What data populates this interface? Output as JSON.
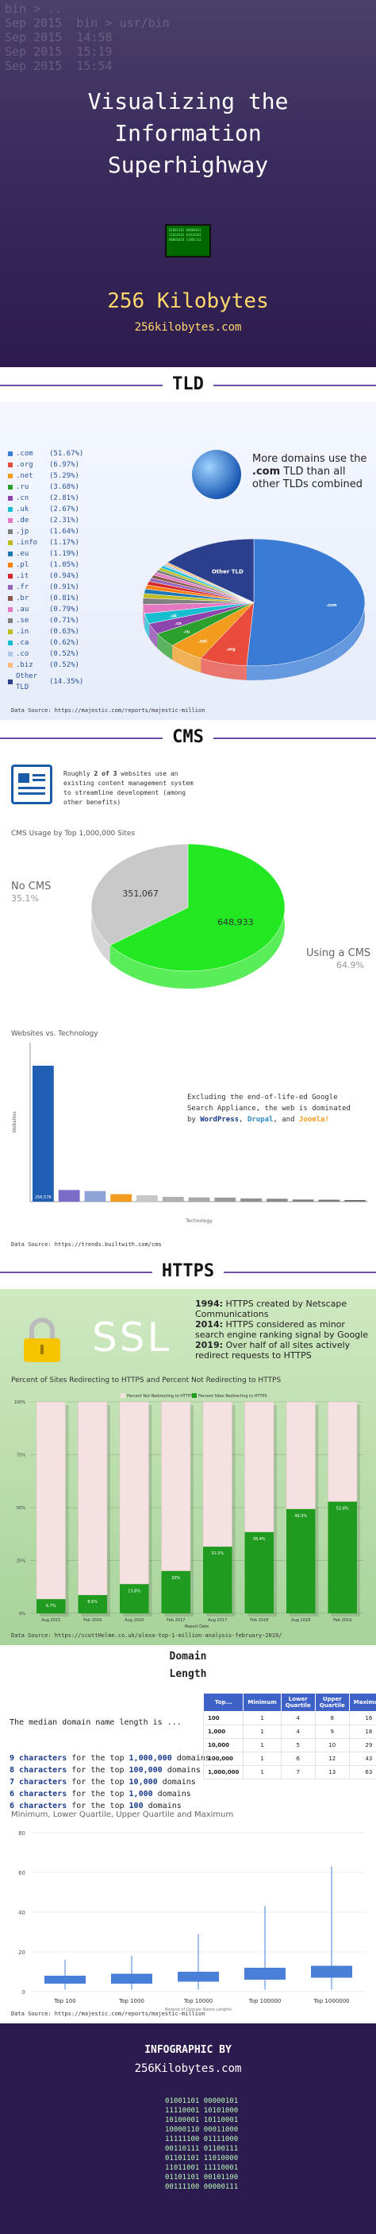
{
  "header": {
    "bg_code": "bin > ..\nSep 2015  bin > usr/bin\nSep 2015  14:58\nSep 2015  15:19\nSep 2015  15:54",
    "title_lines": [
      "Visualizing the",
      "Information",
      "Superhighway"
    ],
    "chip_bits": "01001101 00000011 11010101 01010101 00001010 11001111",
    "brand": "256 Kilobytes",
    "url": "256kilobytes.com"
  },
  "tld": {
    "section_title": "TLD",
    "note_html_parts": [
      "More domains use the ",
      ".com",
      " TLD than all other TLDs combined"
    ],
    "list": [
      {
        "name": ".com",
        "pct": "(51.67%)",
        "color": "#3a7bd5"
      },
      {
        "name": ".org",
        "pct": "(6.97%)",
        "color": "#e94b3c"
      },
      {
        "name": ".net",
        "pct": "(5.29%)",
        "color": "#f29b1d"
      },
      {
        "name": ".ru",
        "pct": "(3.68%)",
        "color": "#2ca02c"
      },
      {
        "name": ".cn",
        "pct": "(2.81%)",
        "color": "#8e44ad"
      },
      {
        "name": ".uk",
        "pct": "(2.67%)",
        "color": "#17becf"
      },
      {
        "name": ".de",
        "pct": "(2.31%)",
        "color": "#e377c2"
      },
      {
        "name": ".jp",
        "pct": "(1.64%)",
        "color": "#7f7f7f"
      },
      {
        "name": ".info",
        "pct": "(1.17%)",
        "color": "#bcbd22"
      },
      {
        "name": ".eu",
        "pct": "(1.19%)",
        "color": "#1f77b4"
      },
      {
        "name": ".pl",
        "pct": "(1.05%)",
        "color": "#ff7f0e"
      },
      {
        "name": ".it",
        "pct": "(0.94%)",
        "color": "#d62728"
      },
      {
        "name": ".fr",
        "pct": "(0.91%)",
        "color": "#9467bd"
      },
      {
        "name": ".br",
        "pct": "(0.81%)",
        "color": "#8c564b"
      },
      {
        "name": ".au",
        "pct": "(0.79%)",
        "color": "#e377c2"
      },
      {
        "name": ".se",
        "pct": "(0.71%)",
        "color": "#7f7f7f"
      },
      {
        "name": ".in",
        "pct": "(0.63%)",
        "color": "#bcbd22"
      },
      {
        "name": ".ca",
        "pct": "(0.62%)",
        "color": "#17becf"
      },
      {
        "name": ".co",
        "pct": "(0.52%)",
        "color": "#aec7e8"
      },
      {
        "name": ".biz",
        "pct": "(0.52%)",
        "color": "#ffbb78"
      },
      {
        "name": "Other TLD",
        "pct": "(14.35%)",
        "color": "#2b3f8f"
      }
    ],
    "pie_labels": {
      "com": ".com",
      "other": "Other TLD",
      "org": ".org",
      "net": ".net",
      "ru": ".ru",
      "cn": ".cn",
      "uk": ".uk"
    },
    "source": "Data Source: https://majestic.com/reports/majestic-million"
  },
  "cms": {
    "section_title": "CMS",
    "intro_parts": [
      "Roughly ",
      "2 of 3",
      " websites use an existing content management system to streamline development (among other benefits)"
    ],
    "usage_title": "CMS Usage by Top 1,000,000 Sites",
    "no_cms_label": "No CMS",
    "no_cms_pct": "35.1%",
    "using_label": "Using a CMS",
    "using_pct": "64.9%",
    "no_cms_value": "351,067",
    "using_value": "648,933",
    "tech_title": "Websites vs. Technology",
    "tech_note_parts": [
      "Excluding the end-of-life-ed Google Search Appliance, the web is dominated by ",
      "WordPress",
      ", ",
      "Drupal",
      ", and ",
      "Joomla!"
    ],
    "bar_axis_label": "Technology",
    "bar_y_label": "Websites",
    "bar_value_label": "256,576",
    "source": "Data Source: https://trends.builtwith.com/cms"
  },
  "https": {
    "section_title": "HTTPS",
    "ssl": "SSL",
    "notes": [
      {
        "year": "1994:",
        "text": " HTTPS created by Netscape Communications"
      },
      {
        "year": "2014:",
        "text": " HTTPS considered as minor search engine ranking signal by Google"
      },
      {
        "year": "2019:",
        "text": " Over half of all sites actively redirect requests to HTTPS"
      }
    ],
    "chart_title": "Percent of Sites Redirecting to HTTPS and Percent Not Redirecting to HTTPS",
    "legend": [
      "Percent Not Redirecting to HTTPS",
      "Percent Sites Redirecting to HTTPS"
    ],
    "x_title": "Report Date",
    "source": "Data Source: https://scottHelme.co.uk/alexa-top-1-million-analysis-february-2019/"
  },
  "domain": {
    "title_line1": "Domain",
    "title_line2": "Length",
    "intro": "The median domain name length is ...",
    "rows": [
      {
        "chars": "9 characters",
        "mid": " for the top ",
        "count": "1,000,000",
        "tail": " domains"
      },
      {
        "chars": "8 characters",
        "mid": " for the top ",
        "count": "100,000",
        "tail": " domains"
      },
      {
        "chars": "7 characters",
        "mid": " for the top ",
        "count": "10,000",
        "tail": " domains"
      },
      {
        "chars": "6 characters",
        "mid": " for the top ",
        "count": "1,000",
        "tail": " domains"
      },
      {
        "chars": "6 characters",
        "mid": " for the top ",
        "count": "100",
        "tail": " domains"
      }
    ],
    "table_headers": [
      "Top...",
      "Minimum",
      "Lower Quartile",
      "Upper Quartile",
      "Maximum"
    ],
    "table_rows": [
      [
        "100",
        "1",
        "4",
        "8",
        "16"
      ],
      [
        "1,000",
        "1",
        "4",
        "9",
        "18"
      ],
      [
        "10,000",
        "1",
        "5",
        "10",
        "29"
      ],
      [
        "100,000",
        "1",
        "6",
        "12",
        "43"
      ],
      [
        "1,000,000",
        "1",
        "7",
        "13",
        "63"
      ]
    ],
    "box_title": "Minimum, Lower Quartile, Upper Quartile and Maximum",
    "box_x_title": "Boxplot of Domain Name Lengths",
    "source": "Data Source: https://majestic.com/reports/majestic-million"
  },
  "footer": {
    "by": "INFOGRAPHIC BY",
    "site": "256Kilobytes.com",
    "binary": [
      "01001101 00000101",
      "11110001 10101000",
      "10100001 10110001",
      "10000110 00011000",
      "11111100 01111000",
      "00110111 01100111",
      "01101101 11010000",
      "11011001 11110001",
      "01101101 00101100",
      "00111100 00000111"
    ]
  },
  "chart_data": [
    {
      "type": "pie",
      "categories": [
        ".com",
        ".org",
        ".net",
        ".ru",
        ".cn",
        ".uk",
        ".de",
        ".jp",
        ".info",
        ".eu",
        ".pl",
        ".it",
        ".fr",
        ".br",
        ".au",
        ".se",
        ".in",
        ".ca",
        ".co",
        ".biz",
        "Other TLD"
      ],
      "values": [
        51.67,
        6.97,
        5.29,
        3.68,
        2.81,
        2.67,
        2.31,
        1.64,
        1.17,
        1.19,
        1.05,
        0.94,
        0.91,
        0.81,
        0.79,
        0.71,
        0.63,
        0.62,
        0.52,
        0.52,
        14.35
      ]
    },
    {
      "type": "pie",
      "title": "CMS Usage by Top 1,000,000 Sites",
      "categories": [
        "No CMS",
        "Using a CMS"
      ],
      "values": [
        351067,
        648933
      ]
    },
    {
      "type": "bar",
      "title": "Websites vs. Technology",
      "xlabel": "Technology",
      "ylabel": "Websites",
      "values": [
        256576,
        22000,
        20000,
        14000,
        12000,
        9000,
        8000,
        7500,
        6000,
        5500,
        4000,
        3600,
        3000
      ],
      "ylim": [
        0,
        300000
      ]
    },
    {
      "type": "bar",
      "title": "Percent of Sites Redirecting to HTTPS and Percent Not Redirecting to HTTPS",
      "xlabel": "Report Date",
      "categories": [
        "Aug 2015",
        "Feb 2016",
        "Aug 2016",
        "Feb 2017",
        "Aug 2017",
        "Feb 2018",
        "Aug 2018",
        "Feb 2019"
      ],
      "series": [
        {
          "name": "Percent Sites Redirecting to HTTPS",
          "values": [
            6.7,
            8.6,
            13.8,
            20.0,
            31.5,
            38.4,
            49.3,
            52.8
          ]
        },
        {
          "name": "Percent Not Redirecting to HTTPS",
          "values": [
            93.3,
            91.4,
            86.2,
            80.0,
            68.5,
            61.6,
            50.7,
            47.2
          ]
        }
      ],
      "y_ticks": [
        "0%",
        "25%",
        "50%",
        "75%",
        "100%"
      ],
      "ylim": [
        0,
        100
      ]
    },
    {
      "type": "box",
      "title": "Minimum, Lower Quartile, Upper Quartile and Maximum",
      "xlabel": "Boxplot of Domain Name Lengths",
      "categories": [
        "Top 100",
        "Top 1000",
        "Top 10000",
        "Top 100000",
        "Top 1000000"
      ],
      "min": [
        1,
        1,
        1,
        1,
        1
      ],
      "q1": [
        4,
        4,
        5,
        6,
        7
      ],
      "q3": [
        8,
        9,
        10,
        12,
        13
      ],
      "max": [
        16,
        18,
        29,
        43,
        63
      ],
      "y_ticks": [
        0,
        20,
        40,
        60,
        80
      ],
      "ylim": [
        0,
        80
      ]
    }
  ]
}
